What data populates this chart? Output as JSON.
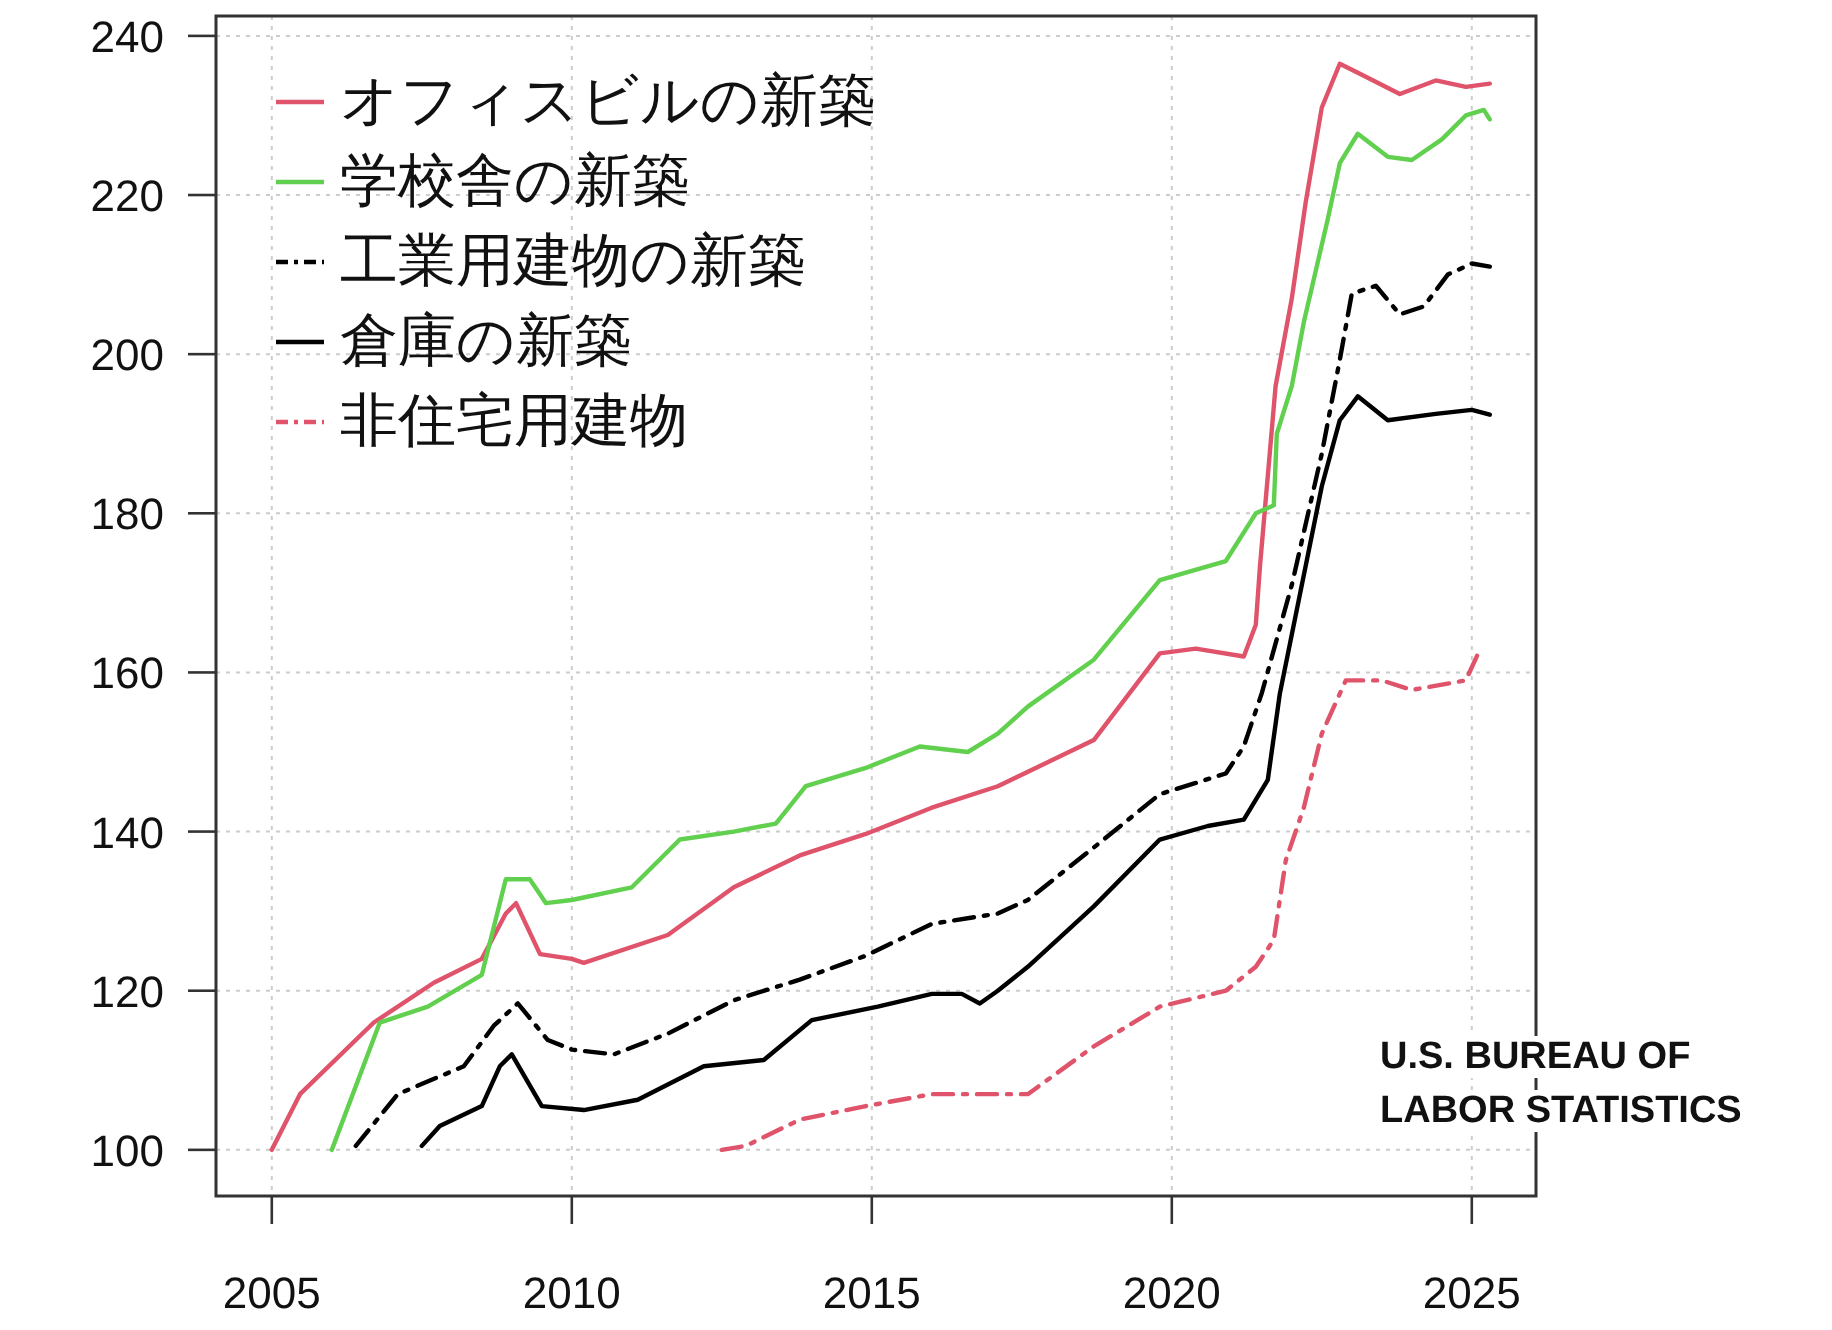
{
  "chart_data": {
    "type": "line",
    "xlim": [
      2004.07,
      2026.07
    ],
    "ylim": [
      94.2,
      242.5
    ],
    "xticks": [
      2005,
      2010,
      2015,
      2020,
      2025
    ],
    "yticks": [
      100,
      120,
      140,
      160,
      180,
      200,
      220,
      240
    ],
    "grid": true,
    "legend": "top left",
    "marker": "none",
    "series": [
      {
        "name": "オフィスビルの新築",
        "color": "#df536b",
        "line_style": "solid",
        "x": [
          2005,
          2005.47,
          2006.7,
          2007.7,
          2008.5,
          2008.9,
          2009.07,
          2009.47,
          2010,
          2010.2,
          2011.6,
          2012.7,
          2013.8,
          2014.9,
          2016,
          2017.1,
          2018.7,
          2019.8,
          2020.4,
          2021.2,
          2021.4,
          2021.47,
          2021.73,
          2022,
          2022.23,
          2022.5,
          2022.8,
          2023.2,
          2023.8,
          2024.4,
          2024.9,
          2025.3
        ],
        "values": [
          100,
          107,
          116,
          121,
          124,
          129.7,
          131,
          124.6,
          124,
          123.5,
          127,
          133,
          137,
          139.7,
          143,
          145.7,
          151.5,
          162.4,
          163,
          162,
          166,
          173.4,
          196,
          207,
          219,
          231,
          236.5,
          235,
          232.7,
          234.4,
          233.6,
          234
        ]
      },
      {
        "name": "学校舎の新築",
        "color": "#61d04f",
        "line_style": "solid",
        "x": [
          2006.0,
          2006.8,
          2007.6,
          2008.5,
          2008.7,
          2008.9,
          2009.3,
          2009.57,
          2010,
          2011,
          2011.8,
          2012.7,
          2013.4,
          2013.9,
          2014.9,
          2015.8,
          2016.6,
          2017.1,
          2017.6,
          2018.7,
          2019.8,
          2020.9,
          2021.4,
          2021.7,
          2021.75,
          2022,
          2022.2,
          2022.6,
          2022.8,
          2023.1,
          2023.6,
          2024,
          2024.5,
          2024.9,
          2025.2,
          2025.3
        ],
        "values": [
          100,
          116,
          118,
          122,
          128,
          134,
          134,
          131,
          131.4,
          133,
          139,
          140,
          141,
          145.7,
          148,
          150.7,
          150,
          152.3,
          155.7,
          161.6,
          171.6,
          174,
          180,
          181,
          190,
          196,
          204,
          217,
          224,
          227.7,
          224.8,
          224.4,
          227,
          230,
          230.7,
          229.5
        ]
      },
      {
        "name": "工業用建物の新築",
        "color": "#000000",
        "line_style": "dashdot",
        "x": [
          2006.4,
          2007.1,
          2008.2,
          2008.7,
          2009.1,
          2009.6,
          2010,
          2010.7,
          2011.6,
          2012.7,
          2013.8,
          2014.9,
          2016,
          2017.1,
          2017.6,
          2018.7,
          2019.8,
          2020.9,
          2021.2,
          2021.5,
          2022,
          2022.5,
          2022.8,
          2023,
          2023.4,
          2023.8,
          2024.2,
          2024.6,
          2025,
          2025.3
        ],
        "values": [
          100.5,
          107,
          110.5,
          115.6,
          118.4,
          113.8,
          112.6,
          112,
          114.6,
          118.8,
          121.4,
          124.4,
          128.4,
          129.7,
          131.4,
          138,
          144.7,
          147.3,
          150.7,
          157.4,
          171,
          187.5,
          199.3,
          207.6,
          208.6,
          205,
          206,
          210,
          211.4,
          211
        ]
      },
      {
        "name": "倉庫の新築",
        "color": "#000000",
        "line_style": "solid",
        "x": [
          2007.5,
          2007.8,
          2008.5,
          2008.8,
          2009,
          2009.5,
          2010.2,
          2011.1,
          2012.2,
          2013.2,
          2014,
          2015.1,
          2016,
          2016.5,
          2016.8,
          2017.1,
          2017.6,
          2018.7,
          2019.8,
          2020.6,
          2021.2,
          2021.6,
          2021.8,
          2022.5,
          2022.8,
          2023.1,
          2023.6,
          2024.4,
          2025,
          2025.3
        ],
        "values": [
          100.5,
          103,
          105.5,
          110.5,
          112,
          105.5,
          105,
          106.3,
          110.5,
          111.3,
          116.3,
          118,
          119.6,
          119.6,
          118.4,
          120,
          123,
          130.6,
          139,
          140.7,
          141.5,
          146.5,
          157.3,
          183.4,
          191.7,
          194.7,
          191.7,
          192.5,
          193,
          192.4
        ]
      },
      {
        "name": "非住宅用建物",
        "color": "#df536b",
        "line_style": "dashdot",
        "x": [
          2012.5,
          2012.9,
          2013.8,
          2014.9,
          2016,
          2017.6,
          2018.7,
          2019.8,
          2020.9,
          2021.4,
          2021.7,
          2021.9,
          2022.2,
          2022.5,
          2022.9,
          2023.5,
          2024,
          2024.9,
          2025.1
        ],
        "values": [
          100,
          100.5,
          103.8,
          105.5,
          107,
          107,
          113,
          118,
          120,
          123,
          126.4,
          136.4,
          143,
          152.3,
          159,
          159,
          157.8,
          159,
          162.3
        ]
      }
    ],
    "annotations": [
      "U.S. BUREAU OF",
      "LABOR STATISTICS"
    ]
  }
}
